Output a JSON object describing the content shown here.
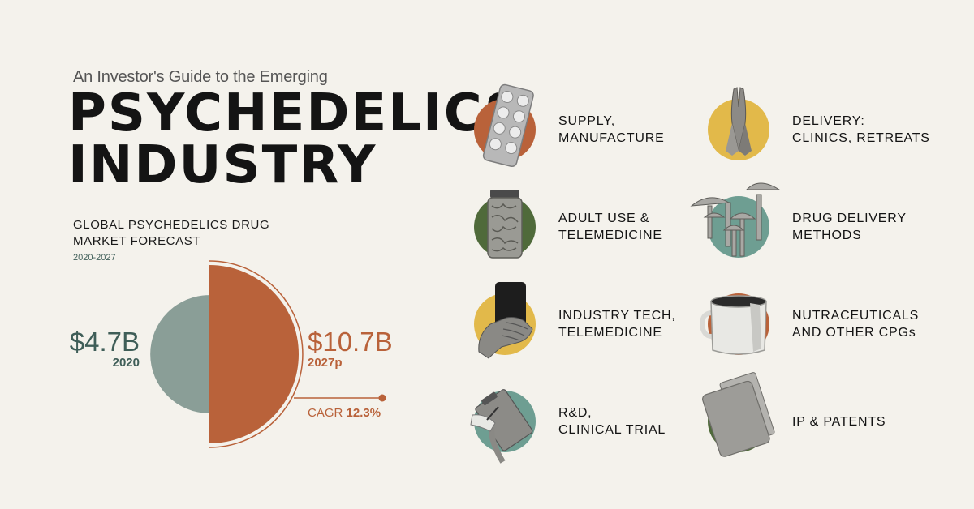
{
  "header": {
    "subtitle": "An Investor's Guide to the Emerging",
    "title_line1": "PSYCHEDELICS",
    "title_line2": "INDUSTRY"
  },
  "colors": {
    "background": "#f4f2ec",
    "orange": "#b9623a",
    "grey_green": "#8a9e97",
    "teal_text": "#3f5e58",
    "olive": "#4f6a3a",
    "mustard": "#e2b94a",
    "teal": "#6e9e92"
  },
  "chart_data": {
    "type": "bar",
    "title_line1": "GLOBAL PSYCHEDELICS DRUG",
    "title_line2": "MARKET FORECAST",
    "years_label": "2020-2027",
    "categories": [
      "2020",
      "2027p"
    ],
    "values": [
      4.7,
      10.7
    ],
    "value_labels": [
      "$4.7B",
      "$10.7B"
    ],
    "unit": "$B",
    "cagr_label": "CAGR",
    "cagr_value": "12.3%"
  },
  "segments": [
    {
      "id": "supply",
      "line1": "SUPPLY,",
      "line2": "MANUFACTURE",
      "icon": "pill-blister-icon",
      "color": "#b9623a"
    },
    {
      "id": "delivery-clinics",
      "line1": "DELIVERY:",
      "line2": "CLINICS, RETREATS",
      "icon": "praying-hands-icon",
      "color": "#e2b94a"
    },
    {
      "id": "adult-use",
      "line1": "ADULT USE &",
      "line2": "TELEMEDICINE",
      "icon": "jar-icon",
      "color": "#4f6a3a"
    },
    {
      "id": "drug-delivery",
      "line1": "DRUG DELIVERY",
      "line2": "METHODS",
      "icon": "mushroom-icon",
      "color": "#6e9e92"
    },
    {
      "id": "industry-tech",
      "line1": "INDUSTRY TECH,",
      "line2": "TELEMEDICINE",
      "icon": "phone-in-hand-icon",
      "color": "#e2b94a"
    },
    {
      "id": "nutraceuticals",
      "line1": "NUTRACEUTICALS",
      "line2": "AND OTHER CPGs",
      "icon": "coffee-mug-icon",
      "color": "#b9623a"
    },
    {
      "id": "rnd",
      "line1": "R&D,",
      "line2": "CLINICAL TRIAL",
      "icon": "clipboard-icon",
      "color": "#6e9e92"
    },
    {
      "id": "ip-patents",
      "line1": "IP & PATENTS",
      "line2": "",
      "icon": "document-folder-icon",
      "color": "#4f6a3a"
    }
  ]
}
